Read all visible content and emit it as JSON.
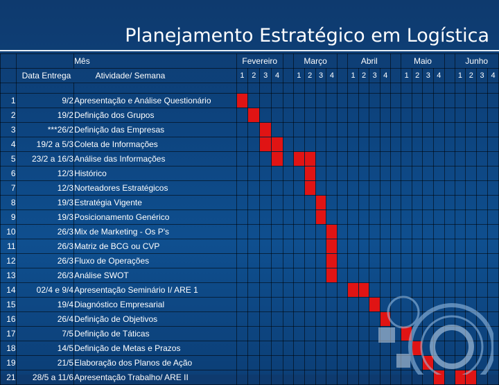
{
  "title": "Planejamento Estratégico em Logística",
  "header": {
    "month_label": "Mês",
    "date_label": "Data Entrega",
    "activity_label": "Atividade/ Semana",
    "months": [
      "Fevereiro",
      "Março",
      "Abril",
      "Maio",
      "Junho"
    ],
    "weeks": [
      "1",
      "2",
      "3",
      "4"
    ]
  },
  "colors": {
    "task_bar": "#e01414",
    "background": "#0d447f"
  },
  "rows": [
    {
      "num": "1",
      "date": "9/2",
      "activity": "Apresentação e Análise Questionário",
      "weeks": [
        1
      ]
    },
    {
      "num": "2",
      "date": "19/2",
      "activity": "Definição dos Grupos",
      "weeks": [
        2
      ]
    },
    {
      "num": "3",
      "date": "***26/2",
      "activity": "Definição das Empresas",
      "weeks": [
        3
      ]
    },
    {
      "num": "4",
      "date": "19/2 a 5/3",
      "activity": "Coleta de Informações",
      "weeks": [
        3,
        4
      ]
    },
    {
      "num": "5",
      "date": "23/2 a  16/3",
      "activity": "Análise das Informações",
      "weeks": [
        4,
        5,
        6
      ]
    },
    {
      "num": "6",
      "date": "12/3",
      "activity": "Histórico",
      "weeks": [
        6
      ]
    },
    {
      "num": "7",
      "date": "12/3",
      "activity": "Norteadores Estratégicos",
      "weeks": [
        6
      ]
    },
    {
      "num": "8",
      "date": "19/3",
      "activity": "Estratégia Vigente",
      "weeks": [
        7
      ]
    },
    {
      "num": "9",
      "date": "19/3",
      "activity": "Posicionamento Genérico",
      "weeks": [
        7
      ]
    },
    {
      "num": "10",
      "date": "26/3",
      "activity": "Mix de Marketing - Os P's",
      "weeks": [
        8
      ]
    },
    {
      "num": "11",
      "date": "26/3",
      "activity": "Matriz de BCG ou CVP",
      "weeks": [
        8
      ]
    },
    {
      "num": "12",
      "date": "26/3",
      "activity": "Fluxo de Operações",
      "weeks": [
        8
      ]
    },
    {
      "num": "13",
      "date": "26/3",
      "activity": "Análise SWOT",
      "weeks": [
        8
      ]
    },
    {
      "num": "14",
      "date": "02/4 e 9/4",
      "activity": "Apresentação Seminário I/ ARE 1",
      "weeks": [
        9,
        10
      ]
    },
    {
      "num": "15",
      "date": "19/4",
      "activity": "Diagnóstico Empresarial",
      "weeks": [
        11
      ]
    },
    {
      "num": "16",
      "date": "26/4",
      "activity": "Definição de Objetivos",
      "weeks": [
        12
      ]
    },
    {
      "num": "17",
      "date": "7/5",
      "activity": "Definição de Táticas",
      "weeks": [
        13
      ]
    },
    {
      "num": "18",
      "date": "14/5",
      "activity": "Definição de Metas e Prazos",
      "weeks": [
        14
      ]
    },
    {
      "num": "19",
      "date": "21/5",
      "activity": "Elaboração dos Planos de Ação",
      "weeks": [
        15
      ]
    },
    {
      "num": "21",
      "date": "28/5 a 11/6",
      "activity": "Apresentação Trabalho/ ARE II",
      "weeks": [
        16,
        17,
        18
      ]
    }
  ]
}
